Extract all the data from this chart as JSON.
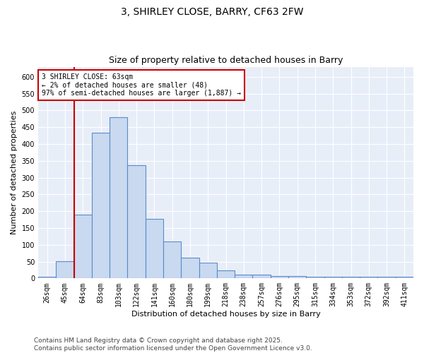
{
  "title": "3, SHIRLEY CLOSE, BARRY, CF63 2FW",
  "subtitle": "Size of property relative to detached houses in Barry",
  "xlabel": "Distribution of detached houses by size in Barry",
  "ylabel": "Number of detached properties",
  "categories": [
    "26sqm",
    "45sqm",
    "64sqm",
    "83sqm",
    "103sqm",
    "122sqm",
    "141sqm",
    "160sqm",
    "180sqm",
    "199sqm",
    "218sqm",
    "238sqm",
    "257sqm",
    "276sqm",
    "295sqm",
    "315sqm",
    "334sqm",
    "353sqm",
    "372sqm",
    "392sqm",
    "411sqm"
  ],
  "values": [
    5,
    52,
    190,
    433,
    480,
    338,
    177,
    110,
    62,
    47,
    23,
    11,
    11,
    7,
    6,
    4,
    4,
    5,
    4,
    4,
    4
  ],
  "bar_color": "#c8d9f0",
  "bar_edge_color": "#5b8bc9",
  "bar_linewidth": 0.8,
  "vline_x": 1.5,
  "vline_color": "#cc0000",
  "annotation_text": "3 SHIRLEY CLOSE: 63sqm\n← 2% of detached houses are smaller (48)\n97% of semi-detached houses are larger (1,887) →",
  "annotation_box_color": "#ffffff",
  "annotation_box_edge": "#cc0000",
  "ylim": [
    0,
    630
  ],
  "yticks": [
    0,
    50,
    100,
    150,
    200,
    250,
    300,
    350,
    400,
    450,
    500,
    550,
    600
  ],
  "fig_background": "#ffffff",
  "plot_background": "#e8eef8",
  "grid_color": "#ffffff",
  "footer_text": "Contains HM Land Registry data © Crown copyright and database right 2025.\nContains public sector information licensed under the Open Government Licence v3.0.",
  "title_fontsize": 10,
  "subtitle_fontsize": 9,
  "axis_label_fontsize": 8,
  "tick_fontsize": 7,
  "annotation_fontsize": 7,
  "footer_fontsize": 6.5
}
